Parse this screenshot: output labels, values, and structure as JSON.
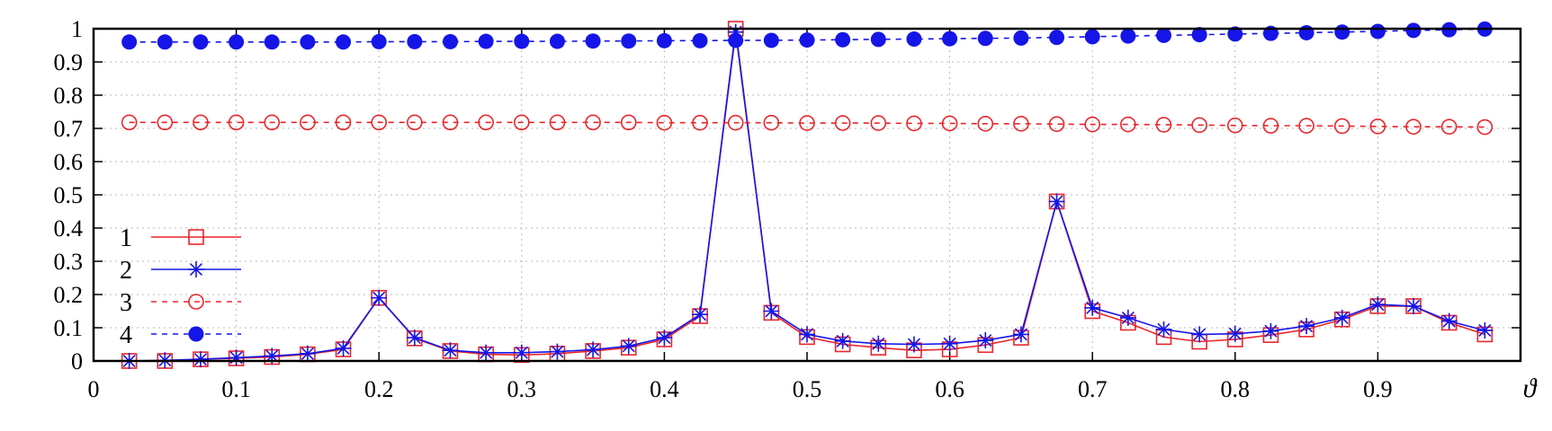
{
  "chart_data": {
    "type": "line",
    "xlabel": "ϑ",
    "ylabel": "",
    "xlim": [
      0,
      1
    ],
    "ylim": [
      0,
      1
    ],
    "grid": true,
    "legend_position": "left",
    "x_ticks": [
      "0",
      "0.1",
      "0.2",
      "0.3",
      "0.4",
      "0.5",
      "0.6",
      "0.7",
      "0.8",
      "0.9"
    ],
    "y_ticks": [
      "0",
      "0.1",
      "0.2",
      "0.3",
      "0.4",
      "0.5",
      "0.6",
      "0.7",
      "0.8",
      "0.9",
      "1"
    ],
    "x": [
      0.025,
      0.05,
      0.075,
      0.1,
      0.125,
      0.15,
      0.175,
      0.2,
      0.225,
      0.25,
      0.275,
      0.3,
      0.325,
      0.35,
      0.375,
      0.4,
      0.425,
      0.45,
      0.475,
      0.5,
      0.525,
      0.55,
      0.575,
      0.6,
      0.625,
      0.65,
      0.675,
      0.7,
      0.725,
      0.75,
      0.775,
      0.8,
      0.825,
      0.85,
      0.875,
      0.9,
      0.925,
      0.95,
      0.975
    ],
    "series": [
      {
        "name": "1",
        "color": "#e8262b",
        "dash": "solid",
        "marker": "open-square",
        "values": [
          0.0,
          0.0,
          0.005,
          0.008,
          0.012,
          0.02,
          0.035,
          0.19,
          0.068,
          0.03,
          0.02,
          0.018,
          0.022,
          0.03,
          0.04,
          0.065,
          0.135,
          1.0,
          0.145,
          0.072,
          0.05,
          0.04,
          0.032,
          0.035,
          0.048,
          0.07,
          0.48,
          0.15,
          0.115,
          0.072,
          0.058,
          0.065,
          0.078,
          0.095,
          0.125,
          0.165,
          0.165,
          0.115,
          0.08
        ]
      },
      {
        "name": "2",
        "color": "#1515e8",
        "dash": "solid",
        "marker": "star",
        "values": [
          0.0,
          0.002,
          0.005,
          0.01,
          0.015,
          0.022,
          0.038,
          0.19,
          0.07,
          0.032,
          0.025,
          0.025,
          0.028,
          0.034,
          0.045,
          0.07,
          0.14,
          0.99,
          0.15,
          0.08,
          0.06,
          0.052,
          0.05,
          0.052,
          0.062,
          0.08,
          0.48,
          0.16,
          0.13,
          0.095,
          0.08,
          0.082,
          0.09,
          0.105,
          0.13,
          0.17,
          0.165,
          0.12,
          0.092
        ]
      },
      {
        "name": "3",
        "color": "#e8262b",
        "dash": "dashed",
        "marker": "open-circle",
        "values": [
          0.718,
          0.718,
          0.718,
          0.718,
          0.718,
          0.718,
          0.718,
          0.718,
          0.718,
          0.718,
          0.718,
          0.718,
          0.718,
          0.718,
          0.718,
          0.717,
          0.717,
          0.717,
          0.717,
          0.716,
          0.716,
          0.716,
          0.715,
          0.715,
          0.714,
          0.714,
          0.713,
          0.712,
          0.712,
          0.711,
          0.71,
          0.709,
          0.708,
          0.708,
          0.707,
          0.706,
          0.705,
          0.705,
          0.704
        ]
      },
      {
        "name": "4",
        "color": "#1515e8",
        "dash": "dashed",
        "marker": "filled-circle",
        "values": [
          0.96,
          0.96,
          0.96,
          0.96,
          0.96,
          0.96,
          0.96,
          0.961,
          0.961,
          0.961,
          0.962,
          0.962,
          0.962,
          0.963,
          0.963,
          0.964,
          0.964,
          0.965,
          0.965,
          0.966,
          0.967,
          0.968,
          0.969,
          0.97,
          0.971,
          0.972,
          0.974,
          0.976,
          0.978,
          0.98,
          0.982,
          0.984,
          0.986,
          0.988,
          0.99,
          0.992,
          0.995,
          0.997,
          0.999
        ]
      }
    ]
  }
}
